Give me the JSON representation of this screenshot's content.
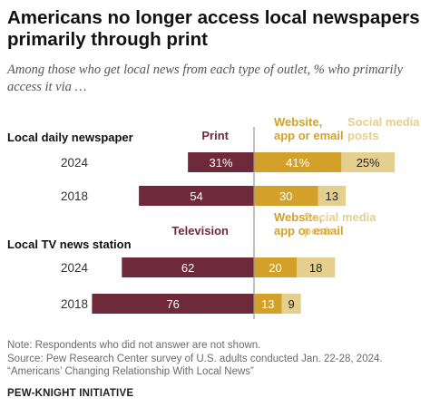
{
  "title": "Americans no longer access local newspapers primarily through print",
  "subtitle": "Among those who get local news from each type of outlet, % who primarily access it via …",
  "colors": {
    "print": "#6e2a3a",
    "website": "#d3a12a",
    "social": "#e4cf8e",
    "divider": "#999999"
  },
  "chart_data": [
    {
      "type": "bar",
      "stacked": "diverging",
      "group_label": "Local daily newspaper",
      "series_labels": {
        "left": "Print",
        "middle": "Website, app or email",
        "right": "Social media posts"
      },
      "categories": [
        "2024",
        "2018"
      ],
      "series": [
        {
          "name": "Print",
          "values": [
            31,
            54
          ],
          "value_labels": [
            "31%",
            "54"
          ]
        },
        {
          "name": "Website, app or email",
          "values": [
            41,
            30
          ],
          "value_labels": [
            "41%",
            "30"
          ]
        },
        {
          "name": "Social media posts",
          "values": [
            25,
            13
          ],
          "value_labels": [
            "25%",
            "13"
          ]
        }
      ]
    },
    {
      "type": "bar",
      "stacked": "diverging",
      "group_label": "Local TV news station",
      "series_labels": {
        "left": "Television",
        "middle": "Website, app or email",
        "right": "Social media posts"
      },
      "categories": [
        "2024",
        "2018"
      ],
      "series": [
        {
          "name": "Television",
          "values": [
            62,
            76
          ],
          "value_labels": [
            "62",
            "76"
          ]
        },
        {
          "name": "Website, app or email",
          "values": [
            20,
            13
          ],
          "value_labels": [
            "20",
            "13"
          ]
        },
        {
          "name": "Social media posts",
          "values": [
            18,
            9
          ],
          "value_labels": [
            "18",
            "9"
          ]
        }
      ]
    }
  ],
  "notes": {
    "note": "Note: Respondents who did not answer are not shown.",
    "source": "Source: Pew Research Center survey of U.S. adults conducted Jan. 22-28, 2024.",
    "report": "“Americans’ Changing Relationship With Local News”"
  },
  "credit": "PEW-KNIGHT INITIATIVE"
}
